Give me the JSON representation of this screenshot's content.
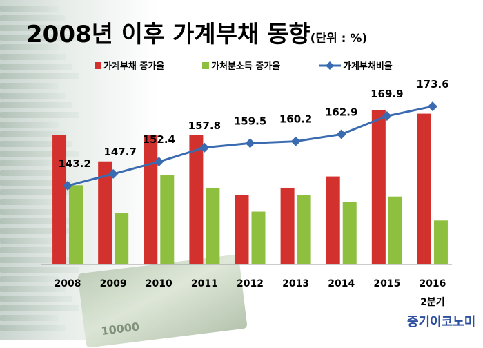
{
  "title": "2008년 이후 가계부채 동향",
  "unit_label": "(단위 : %)",
  "source": "중기이코노미",
  "background_bill_text": "10000",
  "colors": {
    "debt_growth": "#d3312e",
    "income_growth": "#8fbf3f",
    "debt_ratio": "#3a6bb0"
  },
  "chart_data": {
    "type": "bar",
    "categories": [
      "2008",
      "2009",
      "2010",
      "2011",
      "2012",
      "2013",
      "2014",
      "2015",
      "2016\n2분기"
    ],
    "legend_position": "top",
    "grid": false,
    "series": [
      {
        "name": "가계부채 증가율",
        "kind": "bar",
        "values": [
          10.3,
          8.2,
          10.3,
          10.3,
          5.5,
          6.1,
          7.0,
          12.3,
          12.0
        ]
      },
      {
        "name": "가처분소득 증가율",
        "kind": "bar",
        "values": [
          6.3,
          4.1,
          7.1,
          6.1,
          4.2,
          5.5,
          5.0,
          5.4,
          3.5
        ]
      },
      {
        "name": "가계부채비율",
        "kind": "line",
        "values": [
          143.2,
          147.7,
          152.4,
          157.8,
          159.5,
          160.2,
          162.9,
          169.9,
          173.6
        ]
      }
    ],
    "bar_axis_range": [
      0,
      12.8
    ],
    "line_axis_range": [
      113,
      176
    ],
    "data_labels": [
      "143.2",
      "147.7",
      "152.4",
      "157.8",
      "159.5",
      "160.2",
      "162.9",
      "169.9",
      "173.6"
    ]
  }
}
